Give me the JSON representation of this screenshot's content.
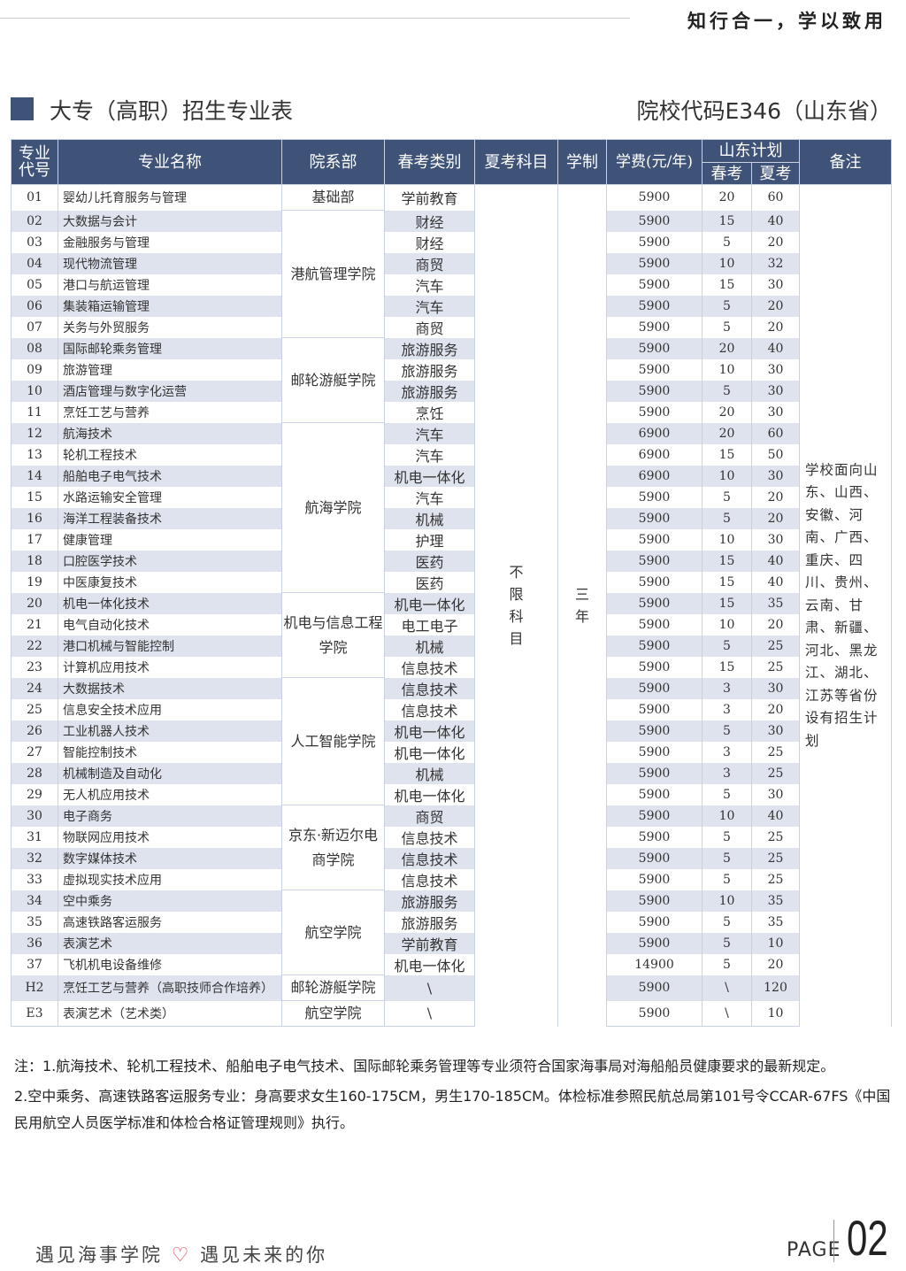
{
  "header": {
    "motto": "知行合一，学以致用",
    "title": "大专（高职）招生专业表",
    "school_code": "院校代码E346（山东省）"
  },
  "colors": {
    "header_bg": "#3f5378",
    "row_alt": "#dfe3ee",
    "heart": "#d9404a"
  },
  "table": {
    "headers": {
      "code": "专业代号",
      "name": "专业名称",
      "dept": "院系部",
      "spring_cat": "春考类别",
      "summer_subject": "夏考科目",
      "years": "学制",
      "fee": "学费(元/年)",
      "plan": "山东计划",
      "plan_spring": "春考",
      "plan_summer": "夏考",
      "notes": "备注"
    },
    "summer_subject": "不限科目",
    "years": "三年",
    "notes": "学校面向山东、山西、安徽、河南、广西、重庆、四川、贵州、云南、甘肃、新疆、河北、黑龙江、湖北、江苏等省份设有招生计划",
    "departments": [
      {
        "name": "基础部",
        "rows": 1
      },
      {
        "name": "港航管理学院",
        "rows": 6
      },
      {
        "name": "邮轮游艇学院",
        "rows": 4
      },
      {
        "name": "航海学院",
        "rows": 8
      },
      {
        "name": "机电与信息工程学院",
        "rows": 4
      },
      {
        "name": "人工智能学院",
        "rows": 6
      },
      {
        "name": "京东·新迈尔电商学院",
        "rows": 4
      },
      {
        "name": "航空学院",
        "rows": 4
      },
      {
        "name": "邮轮游艇学院",
        "rows": 1
      },
      {
        "name": "航空学院",
        "rows": 1
      }
    ],
    "rows": [
      {
        "code": "01",
        "name": "婴幼儿托育服务与管理",
        "cat": "学前教育",
        "fee": "5900",
        "spring": "20",
        "summer": "60"
      },
      {
        "code": "02",
        "name": "大数据与会计",
        "cat": "财经",
        "fee": "5900",
        "spring": "15",
        "summer": "40"
      },
      {
        "code": "03",
        "name": "金融服务与管理",
        "cat": "财经",
        "fee": "5900",
        "spring": "5",
        "summer": "20"
      },
      {
        "code": "04",
        "name": "现代物流管理",
        "cat": "商贸",
        "fee": "5900",
        "spring": "10",
        "summer": "32"
      },
      {
        "code": "05",
        "name": "港口与航运管理",
        "cat": "汽车",
        "fee": "5900",
        "spring": "15",
        "summer": "30"
      },
      {
        "code": "06",
        "name": "集装箱运输管理",
        "cat": "汽车",
        "fee": "5900",
        "spring": "5",
        "summer": "20"
      },
      {
        "code": "07",
        "name": "关务与外贸服务",
        "cat": "商贸",
        "fee": "5900",
        "spring": "5",
        "summer": "20"
      },
      {
        "code": "08",
        "name": "国际邮轮乘务管理",
        "cat": "旅游服务",
        "fee": "5900",
        "spring": "20",
        "summer": "40"
      },
      {
        "code": "09",
        "name": "旅游管理",
        "cat": "旅游服务",
        "fee": "5900",
        "spring": "10",
        "summer": "30"
      },
      {
        "code": "10",
        "name": "酒店管理与数字化运营",
        "cat": "旅游服务",
        "fee": "5900",
        "spring": "5",
        "summer": "30"
      },
      {
        "code": "11",
        "name": "烹饪工艺与营养",
        "cat": "烹饪",
        "fee": "5900",
        "spring": "20",
        "summer": "30"
      },
      {
        "code": "12",
        "name": "航海技术",
        "cat": "汽车",
        "fee": "6900",
        "spring": "20",
        "summer": "60"
      },
      {
        "code": "13",
        "name": "轮机工程技术",
        "cat": "汽车",
        "fee": "6900",
        "spring": "15",
        "summer": "50"
      },
      {
        "code": "14",
        "name": "船舶电子电气技术",
        "cat": "机电一体化",
        "fee": "6900",
        "spring": "10",
        "summer": "30"
      },
      {
        "code": "15",
        "name": "水路运输安全管理",
        "cat": "汽车",
        "fee": "5900",
        "spring": "5",
        "summer": "20"
      },
      {
        "code": "16",
        "name": "海洋工程装备技术",
        "cat": "机械",
        "fee": "5900",
        "spring": "5",
        "summer": "20"
      },
      {
        "code": "17",
        "name": "健康管理",
        "cat": "护理",
        "fee": "5900",
        "spring": "10",
        "summer": "30"
      },
      {
        "code": "18",
        "name": "口腔医学技术",
        "cat": "医药",
        "fee": "5900",
        "spring": "15",
        "summer": "40"
      },
      {
        "code": "19",
        "name": "中医康复技术",
        "cat": "医药",
        "fee": "5900",
        "spring": "15",
        "summer": "40"
      },
      {
        "code": "20",
        "name": "机电一体化技术",
        "cat": "机电一体化",
        "fee": "5900",
        "spring": "15",
        "summer": "35"
      },
      {
        "code": "21",
        "name": "电气自动化技术",
        "cat": "电工电子",
        "fee": "5900",
        "spring": "10",
        "summer": "20"
      },
      {
        "code": "22",
        "name": "港口机械与智能控制",
        "cat": "机械",
        "fee": "5900",
        "spring": "5",
        "summer": "25"
      },
      {
        "code": "23",
        "name": "计算机应用技术",
        "cat": "信息技术",
        "fee": "5900",
        "spring": "15",
        "summer": "25"
      },
      {
        "code": "24",
        "name": "大数据技术",
        "cat": "信息技术",
        "fee": "5900",
        "spring": "3",
        "summer": "30"
      },
      {
        "code": "25",
        "name": "信息安全技术应用",
        "cat": "信息技术",
        "fee": "5900",
        "spring": "3",
        "summer": "20"
      },
      {
        "code": "26",
        "name": "工业机器人技术",
        "cat": "机电一体化",
        "fee": "5900",
        "spring": "5",
        "summer": "30"
      },
      {
        "code": "27",
        "name": "智能控制技术",
        "cat": "机电一体化",
        "fee": "5900",
        "spring": "3",
        "summer": "25"
      },
      {
        "code": "28",
        "name": "机械制造及自动化",
        "cat": "机械",
        "fee": "5900",
        "spring": "3",
        "summer": "25"
      },
      {
        "code": "29",
        "name": "无人机应用技术",
        "cat": "机电一体化",
        "fee": "5900",
        "spring": "5",
        "summer": "30"
      },
      {
        "code": "30",
        "name": "电子商务",
        "cat": "商贸",
        "fee": "5900",
        "spring": "10",
        "summer": "40"
      },
      {
        "code": "31",
        "name": "物联网应用技术",
        "cat": "信息技术",
        "fee": "5900",
        "spring": "5",
        "summer": "25"
      },
      {
        "code": "32",
        "name": "数字媒体技术",
        "cat": "信息技术",
        "fee": "5900",
        "spring": "5",
        "summer": "25"
      },
      {
        "code": "33",
        "name": "虚拟现实技术应用",
        "cat": "信息技术",
        "fee": "5900",
        "spring": "5",
        "summer": "25"
      },
      {
        "code": "34",
        "name": "空中乘务",
        "cat": "旅游服务",
        "fee": "5900",
        "spring": "10",
        "summer": "35"
      },
      {
        "code": "35",
        "name": "高速铁路客运服务",
        "cat": "旅游服务",
        "fee": "5900",
        "spring": "5",
        "summer": "35"
      },
      {
        "code": "36",
        "name": "表演艺术",
        "cat": "学前教育",
        "fee": "5900",
        "spring": "5",
        "summer": "10"
      },
      {
        "code": "37",
        "name": "飞机机电设备维修",
        "cat": "机电一体化",
        "fee": "14900",
        "spring": "5",
        "summer": "20"
      },
      {
        "code": "H2",
        "name": "烹饪工艺与营养（高职技师合作培养）",
        "cat": "\\",
        "fee": "5900",
        "spring": "\\",
        "summer": "120"
      },
      {
        "code": "E3",
        "name": "表演艺术（艺术类）",
        "cat": "\\",
        "fee": "5900",
        "spring": "\\",
        "summer": "10"
      }
    ]
  },
  "footnotes": [
    "注：1.航海技术、轮机工程技术、船舶电子电气技术、国际邮轮乘务管理等专业须符合国家海事局对海船船员健康要求的最新规定。",
    "2.空中乘务、高速铁路客运服务专业：身高要求女生160-175CM，男生170-185CM。体检标准参照民航总局第101号令CCAR-67FS《中国民用航空人员医学标准和体检合格证管理规则》执行。"
  ],
  "footer": {
    "slogan_left": "遇见海事学院",
    "heart_icon": "heart-outline",
    "slogan_right": "遇见未来的你",
    "page_label": "PAGE",
    "page_number": "02"
  }
}
